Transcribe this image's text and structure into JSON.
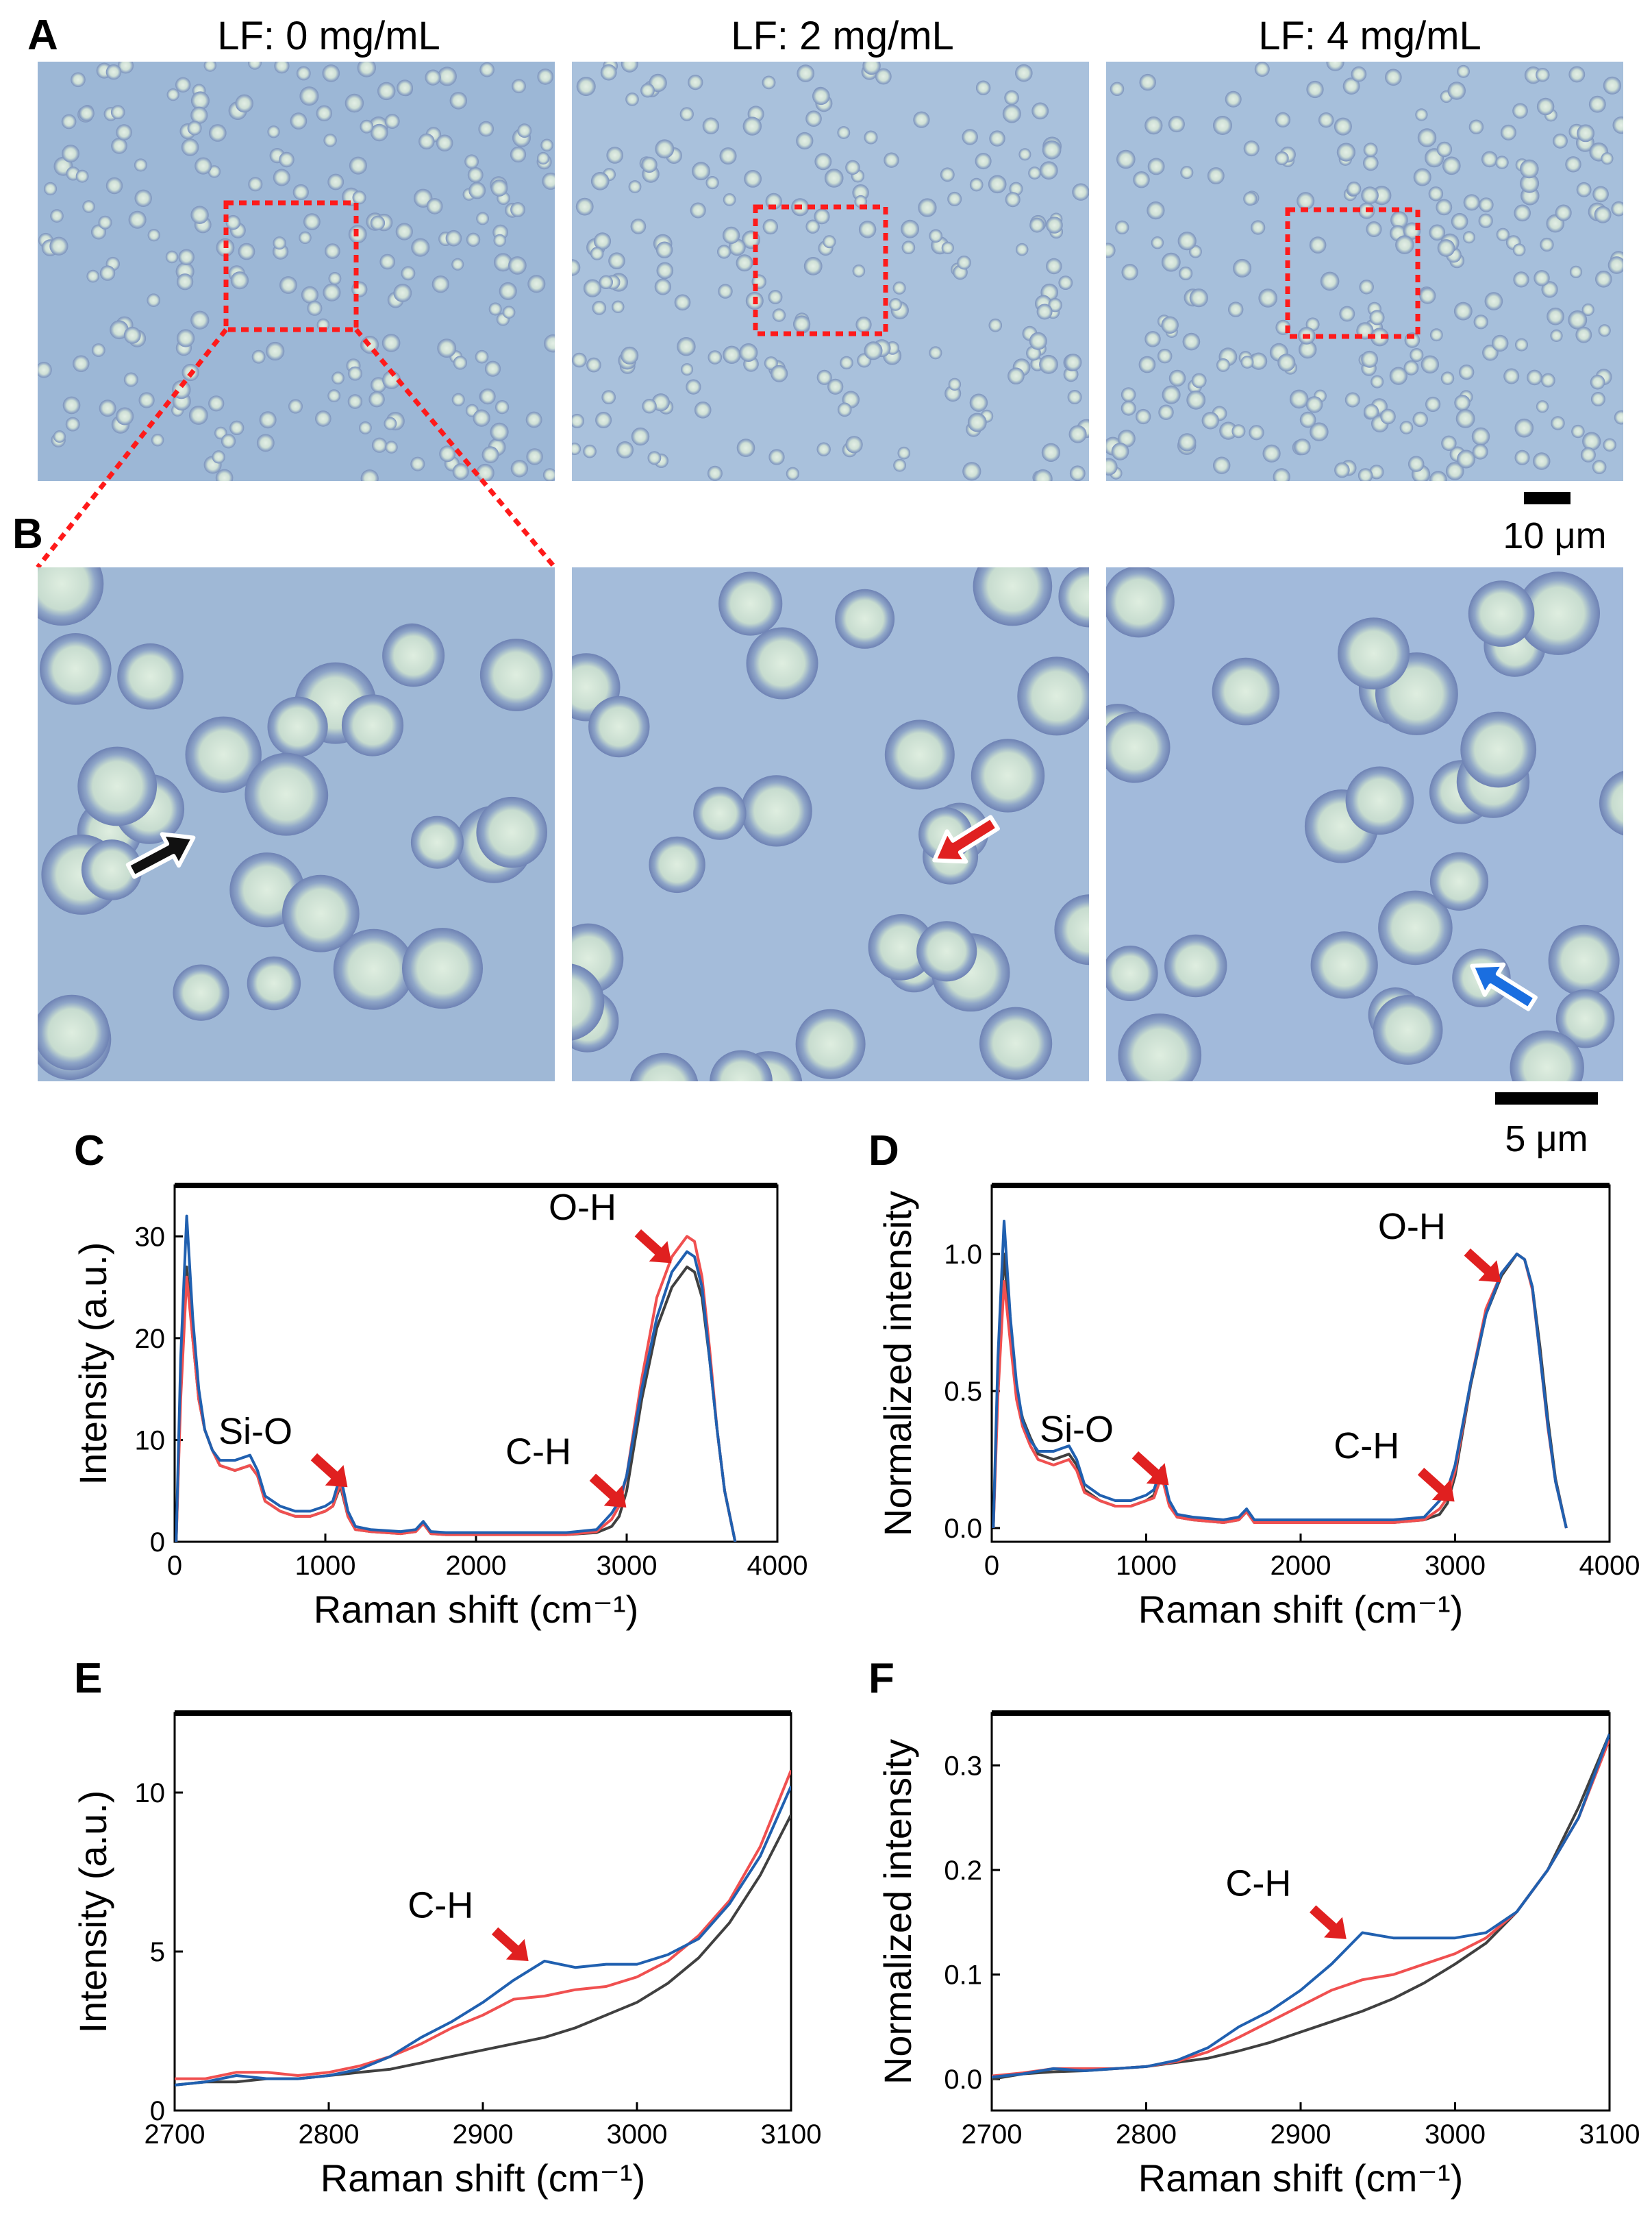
{
  "panels": {
    "A": "A",
    "B": "B",
    "C": "C",
    "D": "D",
    "E": "E",
    "F": "F"
  },
  "conditions": [
    "LF: 0 mg/mL",
    "LF: 2 mg/mL",
    "LF: 4 mg/mL"
  ],
  "scalebars": {
    "top": "10 μm",
    "bottom": "5 μm"
  },
  "colors": {
    "background_micrograph": "#9fb8d4",
    "cell_fill": "#cfe0d6",
    "cell_rim": "#6a7fb0",
    "zoom_box": "#ff1a1a",
    "series_0": "#404040",
    "series_2": "#f05050",
    "series_4": "#2060b0",
    "arrow_black": "#111111",
    "arrow_red": "#e02020",
    "arrow_blue": "#1a6ee0"
  },
  "chart_data": [
    {
      "panel": "C",
      "type": "line",
      "xlabel": "Raman shift (cm⁻¹)",
      "ylabel": "Intensity (a.u.)",
      "xlim": [
        0,
        4000
      ],
      "ylim": [
        0,
        35
      ],
      "xticks": [
        0,
        1000,
        2000,
        3000,
        4000
      ],
      "yticks": [
        0,
        10,
        20,
        30
      ],
      "annotations": [
        {
          "text": "Si-O",
          "x": 1100,
          "y": 6
        },
        {
          "text": "C-H",
          "x": 2950,
          "y": 4
        },
        {
          "text": "O-H",
          "x": 3250,
          "y": 28
        }
      ],
      "series": [
        {
          "color": "#404040",
          "x": [
            10,
            40,
            80,
            120,
            160,
            200,
            250,
            300,
            400,
            500,
            550,
            600,
            700,
            800,
            900,
            1000,
            1050,
            1100,
            1150,
            1200,
            1300,
            1500,
            1600,
            1650,
            1700,
            1800,
            2000,
            2200,
            2400,
            2600,
            2800,
            2900,
            2950,
            3000,
            3100,
            3200,
            3300,
            3400,
            3450,
            3500,
            3550,
            3600,
            3650,
            3720
          ],
          "y": [
            0,
            15,
            27,
            20,
            14,
            11,
            9,
            7.5,
            7,
            7.5,
            6.5,
            4,
            3,
            2.5,
            2.5,
            3,
            3.5,
            5.5,
            2.5,
            1.2,
            1,
            0.8,
            1,
            1.8,
            0.8,
            0.7,
            0.7,
            0.7,
            0.7,
            0.7,
            0.9,
            1.5,
            2.5,
            5,
            14,
            21,
            25,
            27,
            26.5,
            24,
            18,
            11,
            5,
            0
          ]
        },
        {
          "color": "#f05050",
          "x": [
            10,
            40,
            80,
            120,
            160,
            200,
            250,
            300,
            400,
            500,
            550,
            600,
            700,
            800,
            900,
            1000,
            1050,
            1100,
            1150,
            1200,
            1300,
            1500,
            1600,
            1650,
            1700,
            1800,
            2000,
            2200,
            2400,
            2600,
            2800,
            2900,
            2950,
            3000,
            3100,
            3200,
            3300,
            3400,
            3450,
            3500,
            3550,
            3600,
            3650,
            3720
          ],
          "y": [
            0,
            14,
            26,
            20,
            14,
            11,
            9,
            7.5,
            7,
            7.5,
            6.5,
            4,
            3,
            2.5,
            2.5,
            3,
            3.5,
            5.8,
            2.5,
            1.2,
            1,
            0.8,
            1,
            1.8,
            0.8,
            0.7,
            0.7,
            0.7,
            0.7,
            0.7,
            1,
            2.2,
            3.5,
            6.5,
            16,
            24,
            28,
            30,
            29.5,
            26,
            19,
            11,
            5,
            0
          ]
        },
        {
          "color": "#2060b0",
          "x": [
            10,
            40,
            80,
            120,
            160,
            200,
            250,
            300,
            400,
            500,
            550,
            600,
            700,
            800,
            900,
            1000,
            1050,
            1100,
            1150,
            1200,
            1300,
            1500,
            1600,
            1650,
            1700,
            1800,
            2000,
            2200,
            2400,
            2600,
            2800,
            2900,
            2950,
            3000,
            3100,
            3200,
            3300,
            3400,
            3450,
            3500,
            3550,
            3600,
            3650,
            3720
          ],
          "y": [
            0,
            18,
            32,
            22,
            15,
            11,
            9,
            8,
            8,
            8.5,
            7,
            4.5,
            3.5,
            3,
            3,
            3.5,
            4,
            6.5,
            3,
            1.5,
            1.2,
            1,
            1.2,
            2,
            1,
            0.9,
            0.9,
            0.9,
            0.9,
            0.9,
            1.2,
            2.8,
            4,
            6.5,
            15,
            22,
            26.5,
            28.5,
            28,
            25,
            18,
            11,
            5,
            0
          ]
        }
      ]
    },
    {
      "panel": "D",
      "type": "line",
      "xlabel": "Raman shift (cm⁻¹)",
      "ylabel": "Normalized intensity",
      "xlim": [
        0,
        4000
      ],
      "ylim": [
        -0.05,
        1.25
      ],
      "xticks": [
        0,
        1000,
        2000,
        3000,
        4000
      ],
      "yticks": [
        0.0,
        0.5,
        1.0
      ],
      "annotations": [
        {
          "text": "Si-O",
          "x": 1100,
          "y": 0.18
        },
        {
          "text": "C-H",
          "x": 2950,
          "y": 0.12
        },
        {
          "text": "O-H",
          "x": 3250,
          "y": 0.92
        }
      ],
      "series": [
        {
          "color": "#404040",
          "x": [
            10,
            40,
            80,
            120,
            160,
            200,
            250,
            300,
            400,
            500,
            550,
            600,
            700,
            800,
            900,
            1000,
            1050,
            1100,
            1150,
            1200,
            1300,
            1500,
            1600,
            1650,
            1700,
            1800,
            2000,
            2200,
            2400,
            2600,
            2800,
            2900,
            2950,
            3000,
            3100,
            3200,
            3300,
            3400,
            3450,
            3500,
            3550,
            3600,
            3650,
            3720
          ],
          "y": [
            0,
            0.55,
            1.0,
            0.72,
            0.5,
            0.4,
            0.33,
            0.27,
            0.25,
            0.27,
            0.23,
            0.14,
            0.1,
            0.08,
            0.08,
            0.1,
            0.12,
            0.2,
            0.09,
            0.04,
            0.03,
            0.02,
            0.03,
            0.06,
            0.02,
            0.02,
            0.02,
            0.02,
            0.02,
            0.02,
            0.03,
            0.05,
            0.09,
            0.19,
            0.52,
            0.78,
            0.92,
            1.0,
            0.98,
            0.88,
            0.66,
            0.4,
            0.18,
            0
          ]
        },
        {
          "color": "#f05050",
          "x": [
            10,
            40,
            80,
            120,
            160,
            200,
            250,
            300,
            400,
            500,
            550,
            600,
            700,
            800,
            900,
            1000,
            1050,
            1100,
            1150,
            1200,
            1300,
            1500,
            1600,
            1650,
            1700,
            1800,
            2000,
            2200,
            2400,
            2600,
            2800,
            2900,
            2950,
            3000,
            3100,
            3200,
            3300,
            3400,
            3450,
            3500,
            3550,
            3600,
            3650,
            3720
          ],
          "y": [
            0,
            0.48,
            0.9,
            0.68,
            0.47,
            0.37,
            0.3,
            0.25,
            0.23,
            0.25,
            0.21,
            0.13,
            0.1,
            0.08,
            0.08,
            0.1,
            0.11,
            0.19,
            0.08,
            0.04,
            0.03,
            0.02,
            0.03,
            0.06,
            0.02,
            0.02,
            0.02,
            0.02,
            0.02,
            0.02,
            0.03,
            0.07,
            0.11,
            0.21,
            0.53,
            0.8,
            0.93,
            1.0,
            0.98,
            0.87,
            0.63,
            0.37,
            0.17,
            0
          ]
        },
        {
          "color": "#2060b0",
          "x": [
            10,
            40,
            80,
            120,
            160,
            200,
            250,
            300,
            400,
            500,
            550,
            600,
            700,
            800,
            900,
            1000,
            1050,
            1100,
            1150,
            1200,
            1300,
            1500,
            1600,
            1650,
            1700,
            1800,
            2000,
            2200,
            2400,
            2600,
            2800,
            2900,
            2950,
            3000,
            3100,
            3200,
            3300,
            3400,
            3450,
            3500,
            3550,
            3600,
            3650,
            3720
          ],
          "y": [
            0,
            0.62,
            1.12,
            0.77,
            0.53,
            0.39,
            0.32,
            0.28,
            0.28,
            0.3,
            0.25,
            0.16,
            0.12,
            0.1,
            0.1,
            0.12,
            0.14,
            0.22,
            0.1,
            0.05,
            0.04,
            0.03,
            0.04,
            0.07,
            0.03,
            0.03,
            0.03,
            0.03,
            0.03,
            0.03,
            0.04,
            0.1,
            0.14,
            0.23,
            0.53,
            0.78,
            0.93,
            1.0,
            0.98,
            0.88,
            0.63,
            0.38,
            0.17,
            0
          ]
        }
      ]
    },
    {
      "panel": "E",
      "type": "line",
      "xlabel": "Raman shift (cm⁻¹)",
      "ylabel": "Intensity (a.u.)",
      "xlim": [
        2700,
        3100
      ],
      "ylim": [
        0,
        12.5
      ],
      "xticks": [
        2700,
        2800,
        2900,
        3000,
        3100
      ],
      "yticks": [
        0,
        5,
        10
      ],
      "annotations": [
        {
          "text": "C-H",
          "x": 2925,
          "y": 4.9
        }
      ],
      "series": [
        {
          "color": "#404040",
          "x": [
            2700,
            2720,
            2740,
            2760,
            2780,
            2800,
            2820,
            2840,
            2860,
            2880,
            2900,
            2920,
            2940,
            2960,
            2980,
            3000,
            3020,
            3040,
            3060,
            3080,
            3100
          ],
          "y": [
            0.8,
            0.9,
            0.9,
            1.0,
            1.0,
            1.1,
            1.2,
            1.3,
            1.5,
            1.7,
            1.9,
            2.1,
            2.3,
            2.6,
            3.0,
            3.4,
            4.0,
            4.8,
            5.9,
            7.4,
            9.3
          ]
        },
        {
          "color": "#f05050",
          "x": [
            2700,
            2720,
            2740,
            2760,
            2780,
            2800,
            2820,
            2840,
            2860,
            2880,
            2900,
            2920,
            2940,
            2960,
            2980,
            3000,
            3020,
            3040,
            3060,
            3080,
            3100
          ],
          "y": [
            1.0,
            1.0,
            1.2,
            1.2,
            1.1,
            1.2,
            1.4,
            1.7,
            2.1,
            2.6,
            3.0,
            3.5,
            3.6,
            3.8,
            3.9,
            4.2,
            4.7,
            5.5,
            6.6,
            8.3,
            10.7
          ]
        },
        {
          "color": "#2060b0",
          "x": [
            2700,
            2720,
            2740,
            2760,
            2780,
            2800,
            2820,
            2840,
            2860,
            2880,
            2900,
            2920,
            2940,
            2960,
            2980,
            3000,
            3020,
            3040,
            3060,
            3080,
            3100
          ],
          "y": [
            0.8,
            0.9,
            1.1,
            1.0,
            1.0,
            1.1,
            1.3,
            1.7,
            2.3,
            2.8,
            3.4,
            4.1,
            4.7,
            4.5,
            4.6,
            4.6,
            4.9,
            5.4,
            6.5,
            8.0,
            10.2
          ]
        }
      ]
    },
    {
      "panel": "F",
      "type": "line",
      "xlabel": "Raman shift (cm⁻¹)",
      "ylabel": "Normalized intensity",
      "xlim": [
        2700,
        3100
      ],
      "ylim": [
        -0.03,
        0.35
      ],
      "xticks": [
        2700,
        2800,
        2900,
        3000,
        3100
      ],
      "yticks": [
        0.0,
        0.1,
        0.2,
        0.3
      ],
      "annotations": [
        {
          "text": "C-H",
          "x": 2925,
          "y": 0.14
        }
      ],
      "series": [
        {
          "color": "#404040",
          "x": [
            2700,
            2720,
            2740,
            2760,
            2780,
            2800,
            2820,
            2840,
            2860,
            2880,
            2900,
            2920,
            2940,
            2960,
            2980,
            3000,
            3020,
            3040,
            3060,
            3080,
            3100
          ],
          "y": [
            0.0,
            0.005,
            0.007,
            0.008,
            0.01,
            0.012,
            0.016,
            0.02,
            0.027,
            0.035,
            0.045,
            0.055,
            0.065,
            0.077,
            0.092,
            0.11,
            0.13,
            0.16,
            0.2,
            0.26,
            0.33
          ]
        },
        {
          "color": "#f05050",
          "x": [
            2700,
            2720,
            2740,
            2760,
            2780,
            2800,
            2820,
            2840,
            2860,
            2880,
            2900,
            2920,
            2940,
            2960,
            2980,
            3000,
            3020,
            3040,
            3060,
            3080,
            3100
          ],
          "y": [
            0.003,
            0.006,
            0.01,
            0.01,
            0.01,
            0.012,
            0.017,
            0.026,
            0.04,
            0.055,
            0.07,
            0.085,
            0.095,
            0.1,
            0.11,
            0.12,
            0.135,
            0.16,
            0.2,
            0.25,
            0.325
          ]
        },
        {
          "color": "#2060b0",
          "x": [
            2700,
            2720,
            2740,
            2760,
            2780,
            2800,
            2820,
            2840,
            2860,
            2880,
            2900,
            2920,
            2940,
            2960,
            2980,
            3000,
            3020,
            3040,
            3060,
            3080,
            3100
          ],
          "y": [
            0.002,
            0.005,
            0.01,
            0.008,
            0.01,
            0.012,
            0.018,
            0.03,
            0.05,
            0.065,
            0.085,
            0.11,
            0.14,
            0.135,
            0.135,
            0.135,
            0.14,
            0.16,
            0.2,
            0.25,
            0.33
          ]
        }
      ]
    }
  ]
}
